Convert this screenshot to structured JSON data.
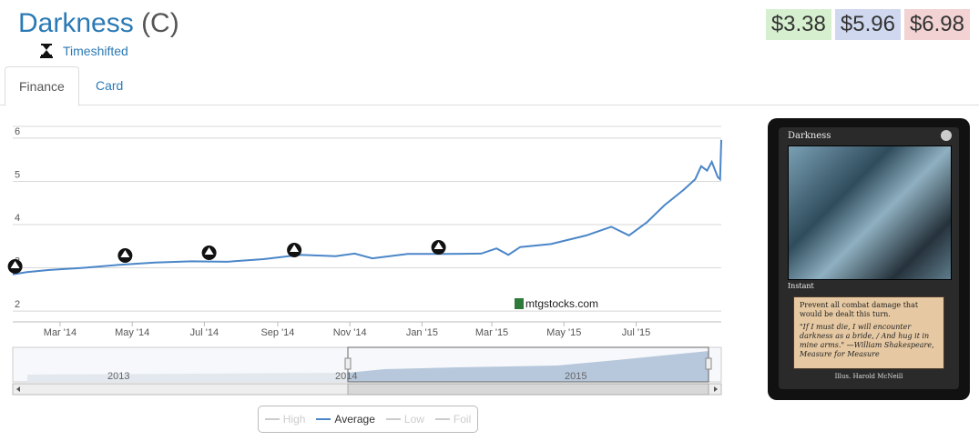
{
  "card": {
    "name": "Darkness",
    "rarity": "(C)",
    "set_name": "Timeshifted",
    "set_icon": "hourglass-icon"
  },
  "prices": {
    "low": "$3.38",
    "average": "$5.96",
    "high": "$6.98"
  },
  "colors": {
    "accent": "#2b7ab5",
    "line": "#4b86c8",
    "low_bg": "#d6f0cf",
    "avg_bg": "#cfd8ef",
    "high_bg": "#f2d2d2"
  },
  "tabs": [
    {
      "label": "Finance",
      "active": true
    },
    {
      "label": "Card",
      "active": false
    }
  ],
  "chart_data": {
    "type": "line",
    "title": "",
    "xlabel": "",
    "ylabel": "",
    "ylim": [
      1.75,
      6.25
    ],
    "yticks": [
      "2",
      "3",
      "4",
      "5",
      "6"
    ],
    "xticks": [
      "Mar '14",
      "May '14",
      "Jul '14",
      "Sep '14",
      "Nov '14",
      "Jan '15",
      "Mar '15",
      "May '15",
      "Jul '15"
    ],
    "grid": true,
    "watermark": "mtgstocks.com",
    "set_markers": [
      {
        "date": "2014-01-22",
        "icon": "set-symbol-icon"
      },
      {
        "date": "2014-04-25",
        "icon": "set-symbol-icon"
      },
      {
        "date": "2014-07-05",
        "icon": "set-symbol-icon"
      },
      {
        "date": "2014-09-15",
        "icon": "set-symbol-icon"
      },
      {
        "date": "2015-01-15",
        "icon": "set-symbol-icon"
      }
    ],
    "series": [
      {
        "name": "Average",
        "values": [
          [
            "2014-01-20",
            2.85
          ],
          [
            "2014-02-01",
            2.9
          ],
          [
            "2014-02-20",
            2.95
          ],
          [
            "2014-03-20",
            3.0
          ],
          [
            "2014-04-20",
            3.07
          ],
          [
            "2014-05-20",
            3.12
          ],
          [
            "2014-06-20",
            3.15
          ],
          [
            "2014-07-20",
            3.14
          ],
          [
            "2014-08-20",
            3.2
          ],
          [
            "2014-09-20",
            3.3
          ],
          [
            "2014-10-20",
            3.27
          ],
          [
            "2014-11-05",
            3.33
          ],
          [
            "2014-11-20",
            3.22
          ],
          [
            "2014-12-20",
            3.32
          ],
          [
            "2015-01-20",
            3.32
          ],
          [
            "2015-02-20",
            3.33
          ],
          [
            "2015-03-05",
            3.45
          ],
          [
            "2015-03-15",
            3.3
          ],
          [
            "2015-03-25",
            3.48
          ],
          [
            "2015-04-20",
            3.55
          ],
          [
            "2015-05-20",
            3.75
          ],
          [
            "2015-06-10",
            3.95
          ],
          [
            "2015-06-25",
            3.75
          ],
          [
            "2015-07-10",
            4.05
          ],
          [
            "2015-07-25",
            4.45
          ],
          [
            "2015-08-10",
            4.8
          ],
          [
            "2015-08-20",
            5.05
          ],
          [
            "2015-08-25",
            5.35
          ],
          [
            "2015-08-30",
            5.25
          ],
          [
            "2015-09-03",
            5.45
          ],
          [
            "2015-09-08",
            5.1
          ],
          [
            "2015-09-10",
            5.05
          ],
          [
            "2015-09-11",
            5.96
          ]
        ]
      },
      {
        "name": "High",
        "values": [],
        "visible": false
      },
      {
        "name": "Low",
        "values": [],
        "visible": false
      },
      {
        "name": "Foil",
        "values": [],
        "visible": false
      }
    ],
    "navigator": {
      "labels": [
        "2013",
        "2014",
        "2015"
      ]
    }
  },
  "card_image": {
    "type_line": "Instant",
    "rules_text": "Prevent all combat damage that would be dealt this turn.",
    "flavor_text": "\"If I must die, I will encounter darkness as a bride, / And hug it in mine arms.\" —William Shakespeare, Measure for Measure",
    "illustrator": "Illus. Harold McNeill"
  },
  "legend": [
    {
      "label": "High",
      "active": false
    },
    {
      "label": "Average",
      "active": true
    },
    {
      "label": "Low",
      "active": false
    },
    {
      "label": "Foil",
      "active": false
    }
  ]
}
